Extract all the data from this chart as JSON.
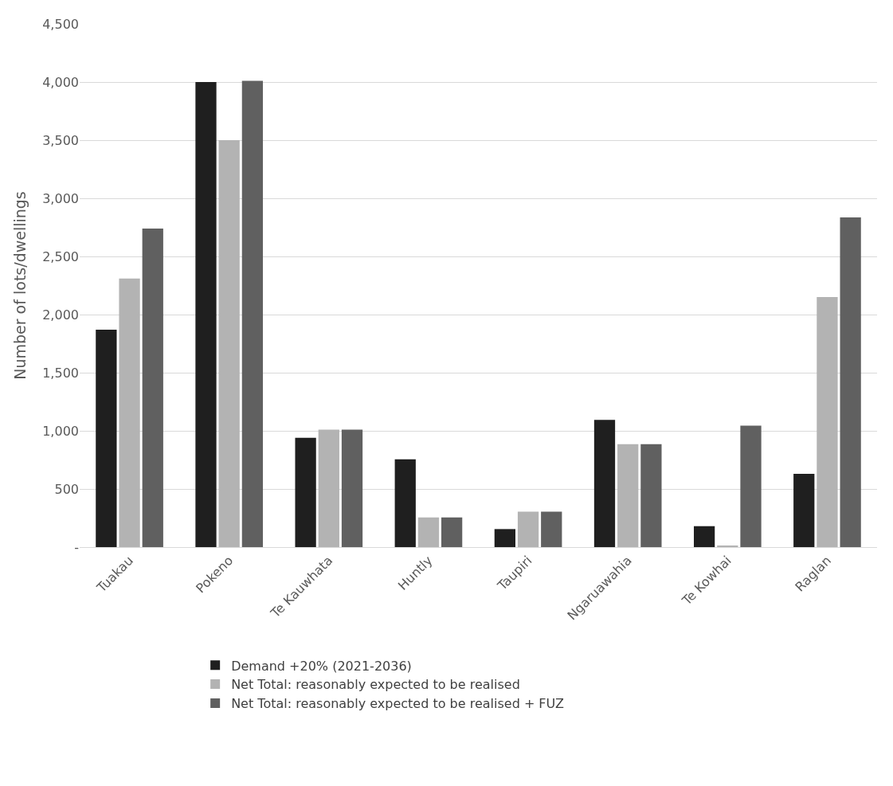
{
  "chart_data": {
    "type": "bar",
    "ylabel": "Number of lots/dwellings",
    "categories": [
      "Tuakau",
      "Pokeno",
      "Te Kauwhata",
      "Huntly",
      "Taupiri",
      "Ngaruawahia",
      "Te Kowhai",
      "Raglan"
    ],
    "series": [
      {
        "name": "Demand +20% (2021-2036)",
        "color": "#1f1f1f",
        "values": [
          1870,
          4000,
          940,
          755,
          155,
          1095,
          180,
          630
        ]
      },
      {
        "name": "Net Total: reasonably expected to be realised",
        "color": "#b3b3b3",
        "values": [
          2310,
          3500,
          1010,
          255,
          305,
          885,
          10,
          2150
        ]
      },
      {
        "name": "Net Total: reasonably expected to be realised + FUZ",
        "color": "#606060",
        "values": [
          2740,
          4010,
          1010,
          255,
          305,
          885,
          1045,
          2835
        ]
      }
    ],
    "ylim": [
      0,
      4500
    ],
    "yticks": [
      {
        "value": 0,
        "label": "-"
      },
      500,
      {
        "value": 1000,
        "label": "1,000"
      },
      {
        "value": 1500,
        "label": "1,500"
      },
      {
        "value": 2000,
        "label": "2,000"
      },
      {
        "value": 2500,
        "label": "2,500"
      },
      {
        "value": 3000,
        "label": "3,000"
      },
      {
        "value": 3500,
        "label": "3,500"
      },
      {
        "value": 4000,
        "label": "4,000"
      },
      {
        "value": 4500,
        "label": "4,500"
      }
    ],
    "grid": "y",
    "legend": "bottom"
  }
}
